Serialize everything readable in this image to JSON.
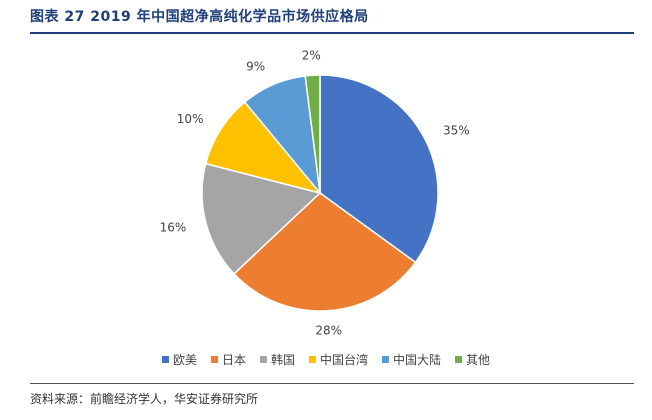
{
  "title": "图表 27 2019 年中国超净高纯化学品市场供应格局",
  "source": "资料来源：前瞻经济学人，华安证券研究所",
  "chart_data": {
    "type": "pie",
    "categories": [
      "欧美",
      "日本",
      "韩国",
      "中国台湾",
      "中国大陆",
      "其他"
    ],
    "values": [
      35,
      28,
      16,
      10,
      9,
      2
    ],
    "labels": [
      "35%",
      "28%",
      "16%",
      "10%",
      "9%",
      "2%"
    ],
    "colors": [
      "#4472c4",
      "#ed7d31",
      "#a5a5a5",
      "#ffc000",
      "#5b9bd5",
      "#70ad47"
    ],
    "start_angle": "12 o'clock",
    "direction": "clockwise",
    "legend_position": "bottom"
  }
}
